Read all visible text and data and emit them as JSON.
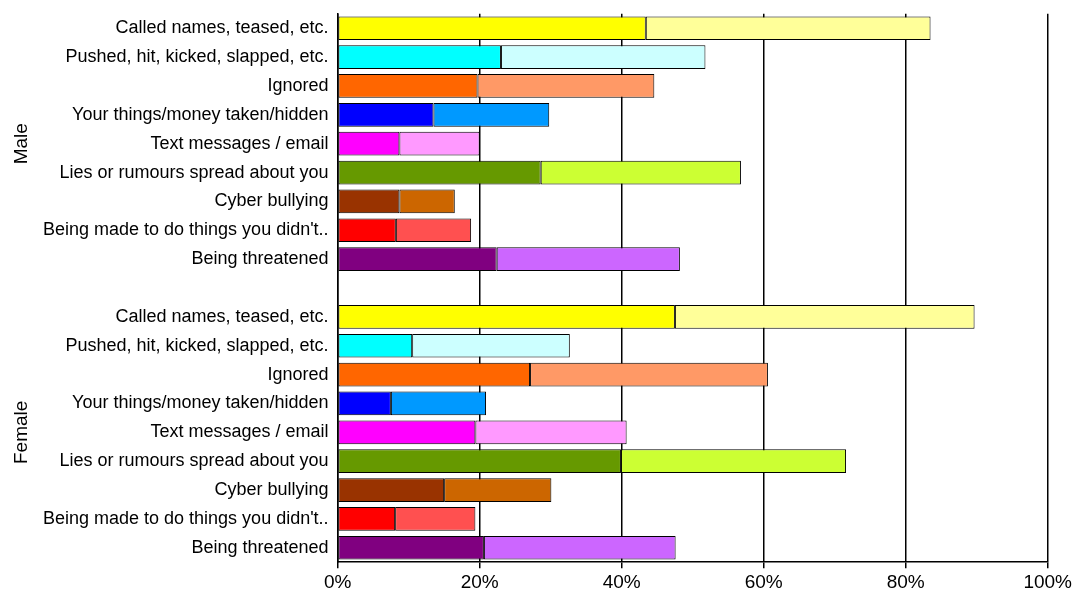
{
  "chart_data": {
    "type": "bar",
    "orientation": "horizontal",
    "stacked": true,
    "legend": false,
    "grid": "x",
    "categories": [
      "Called names, teased, etc.",
      "Pushed, hit, kicked, slapped, etc.",
      "Ignored",
      "Your things/money taken/hidden",
      "Text messages / email",
      "Lies or rumours spread about you",
      "Cyber bullying",
      "Being made to do things you didn't..",
      "Being threatened",
      null,
      "Called names, teased, etc.",
      "Pushed, hit, kicked, slapped, etc.",
      "Ignored",
      "Your things/money taken/hidden",
      "Text messages / email",
      "Lies or rumours spread about you",
      "Cyber bullying",
      "Being made to do things you didn't..",
      "Being threatened"
    ],
    "series": [
      {
        "colors": [
          "#ffff00",
          "#00ffff",
          "#ff6600",
          "#0000ff",
          "#ff00ff",
          "#669900",
          "#993300",
          "#ff0000",
          "#800080",
          null,
          "#ffff00",
          "#00ffff",
          "#ff6600",
          "#0000ff",
          "#ff00ff",
          "#669900",
          "#993300",
          "#ff0000",
          "#800080"
        ],
        "values": [
          43.4,
          23.0,
          19.7,
          13.5,
          8.7,
          28.6,
          8.7,
          8.2,
          22.4,
          null,
          47.5,
          10.5,
          27.1,
          7.5,
          19.4,
          39.9,
          15.0,
          8.1,
          20.6
        ]
      },
      {
        "colors": [
          "#ffff99",
          "#ccffff",
          "#ff9966",
          "#0099ff",
          "#ff99ff",
          "#ccff33",
          "#cc6600",
          "#ff5050",
          "#cc66ff",
          null,
          "#ffff99",
          "#ccffff",
          "#ff9966",
          "#0099ff",
          "#ff99ff",
          "#ccff33",
          "#cc6600",
          "#ff5050",
          "#cc66ff"
        ],
        "values": [
          40.1,
          28.8,
          24.9,
          16.3,
          11.3,
          28.2,
          7.8,
          10.6,
          25.8,
          null,
          42.2,
          22.2,
          33.5,
          13.4,
          21.3,
          31.7,
          15.1,
          11.3,
          27.0
        ]
      }
    ],
    "xlim": [
      0,
      100
    ],
    "xticks": [
      {
        "value": 0,
        "label": "0%"
      },
      {
        "value": 20,
        "label": "20%"
      },
      {
        "value": 40,
        "label": "40%"
      },
      {
        "value": 60,
        "label": "60%"
      },
      {
        "value": 80,
        "label": "80%"
      },
      {
        "value": 100,
        "label": "100%"
      }
    ],
    "annotations": [
      "Male",
      "Female"
    ]
  }
}
